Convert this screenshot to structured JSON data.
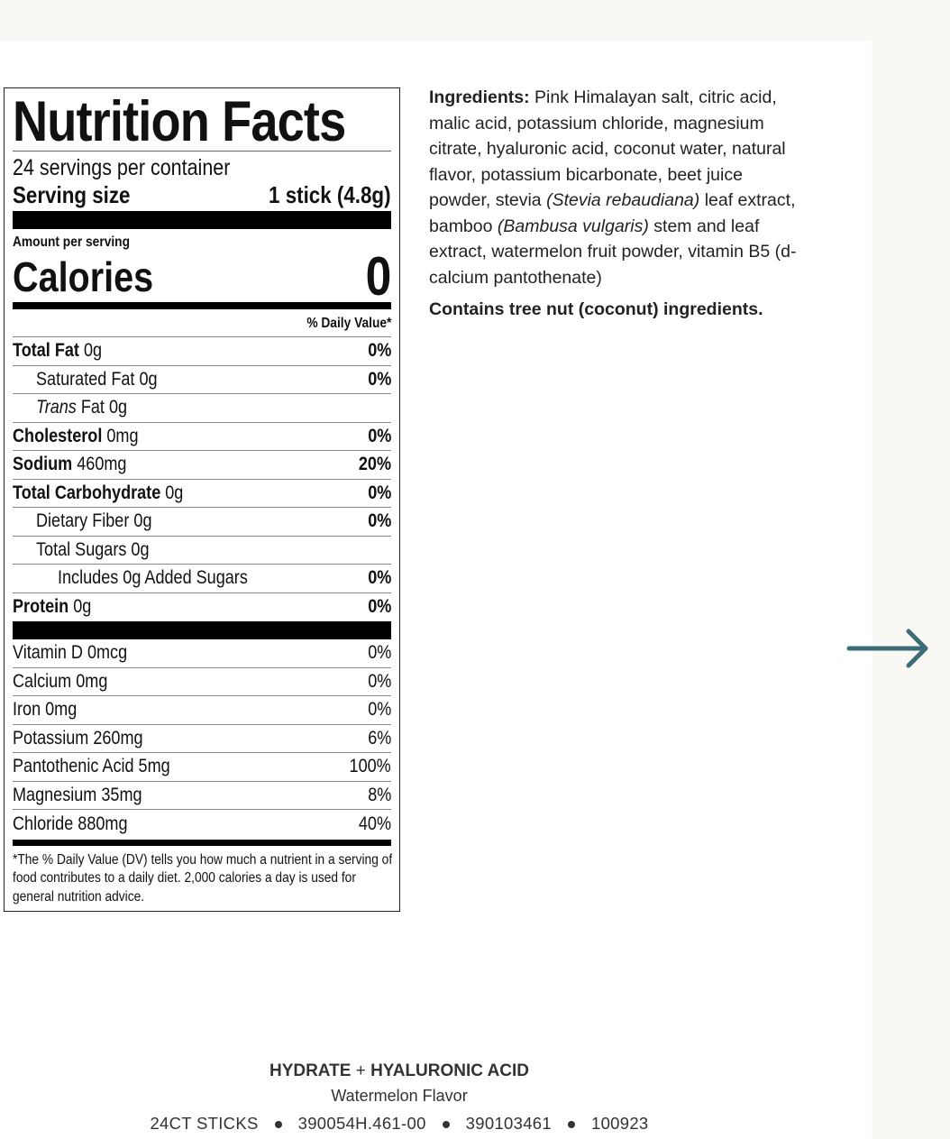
{
  "nutrition": {
    "title": "Nutrition Facts",
    "servings": "24 servings per container",
    "serving_size_label": "Serving size",
    "serving_size": "1 stick (4.8g)",
    "amount_per_serving": "Amount per serving",
    "calories_label": "Calories",
    "calories": "0",
    "dv_header": "% Daily Value*",
    "nutrients": [
      {
        "name": "Total Fat",
        "amount": "0g",
        "dv": "0%"
      },
      {
        "name": "Saturated Fat",
        "amount": "0g",
        "dv": "0%"
      },
      {
        "name_italic": "Trans",
        "name": "Fat",
        "amount": "0g"
      },
      {
        "name": "Cholesterol",
        "amount": "0mg",
        "dv": "0%"
      },
      {
        "name": "Sodium",
        "amount": "460mg",
        "dv": "20%"
      },
      {
        "name": "Total Carbohydrate",
        "amount": "0g",
        "dv": "0%"
      },
      {
        "name": "Dietary Fiber",
        "amount": "0g",
        "dv": "0%"
      },
      {
        "name": "Total Sugars",
        "amount": "0g"
      },
      {
        "name": "Includes 0g Added Sugars",
        "dv": "0%"
      },
      {
        "name": "Protein",
        "amount": "0g",
        "dv": "0%"
      }
    ],
    "vitamins": [
      {
        "name": "Vitamin D 0mcg",
        "dv": "0%"
      },
      {
        "name": "Calcium 0mg",
        "dv": "0%"
      },
      {
        "name": "Iron 0mg",
        "dv": "0%"
      },
      {
        "name": "Potassium 260mg",
        "dv": "6%"
      },
      {
        "name": "Pantothenic Acid 5mg",
        "dv": "100%"
      },
      {
        "name": "Magnesium 35mg",
        "dv": "8%"
      },
      {
        "name": "Chloride 880mg",
        "dv": "40%"
      }
    ],
    "footnote": "*The % Daily Value (DV) tells you how much a nutrient in a serving of food contributes to a daily diet. 2,000 calories a day is used for general nutrition advice."
  },
  "ingredients": {
    "label": "Ingredients:",
    "parts": [
      "Pink Himalayan salt, citric acid, malic acid, potassium chloride, magnesium citrate, hyaluronic acid, coconut water, natural flavor, potassium bicarbonate, beet juice powder, stevia",
      "(Stevia rebaudiana)",
      "leaf extract, bamboo",
      "(Bambusa vulgaris)",
      "stem and leaf extract, watermelon fruit powder, vitamin B5 (d-calcium pantothenate)"
    ],
    "allergen": "Contains tree nut (coconut) ingredients."
  },
  "footer": {
    "product_name": "HYDRATE",
    "plus": "+",
    "product_name_2": "HYALURONIC ACID",
    "flavor": "Watermelon Flavor",
    "codes": [
      "24CT STICKS",
      "390054H.461-00",
      "390103461",
      "100923"
    ]
  }
}
